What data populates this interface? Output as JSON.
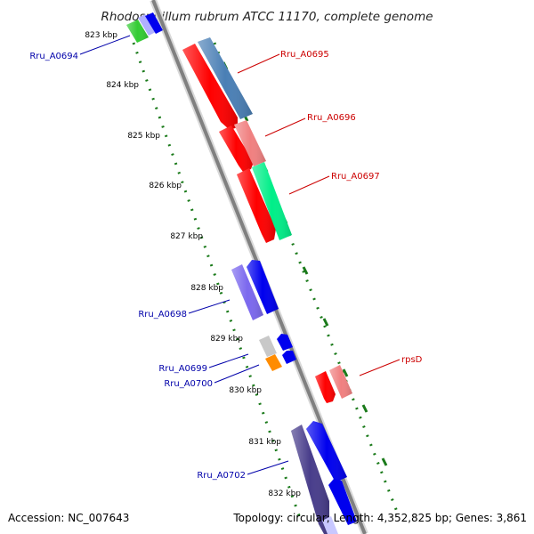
{
  "title": "Rhodospirillum rubrum ATCC 11170, complete genome",
  "footer": {
    "accession": "Accession: NC_007643",
    "summary": "Topology: circular; Length: 4,352,825 bp; Genes: 3,861"
  },
  "scale_labels": [
    "823 kbp",
    "824 kbp",
    "825 kbp",
    "826 kbp",
    "827 kbp",
    "828 kbp",
    "829 kbp",
    "830 kbp",
    "831 kbp",
    "832 kbp"
  ],
  "gene_labels": [
    {
      "name": "rru-a0694-label",
      "text": "Rru_A0694",
      "color": "#0000aa"
    },
    {
      "name": "rru-a0695-label",
      "text": "Rru_A0695",
      "color": "#cc0000"
    },
    {
      "name": "rru-a0696-label",
      "text": "Rru_A0696",
      "color": "#cc0000"
    },
    {
      "name": "rru-a0697-label",
      "text": "Rru_A0697",
      "color": "#cc0000"
    },
    {
      "name": "rru-a0698-label",
      "text": "Rru_A0698",
      "color": "#0000aa"
    },
    {
      "name": "rru-a0699-label",
      "text": "Rru_A0699",
      "color": "#0000aa"
    },
    {
      "name": "rru-a0700-label",
      "text": "Rru_A0700",
      "color": "#0000aa"
    },
    {
      "name": "rpsd-label",
      "text": "rpsD",
      "color": "#cc0000"
    },
    {
      "name": "rru-a0702-label",
      "text": "Rru_A0702",
      "color": "#0000aa"
    }
  ],
  "colors": {
    "backbone": "#808080",
    "scale_dots": "#1a7a1a",
    "forward_cds": "#ff0000",
    "reverse_cds": "#0000ee",
    "rpsd": "#ff7f7f",
    "aqua": "#00ee88",
    "steelblue": "#4a7fb5",
    "slate": "#7b68ee",
    "indigo": "#483d8b",
    "gray": "#c0c0c0",
    "orange": "#ff8c00",
    "green": "#33cc33"
  }
}
